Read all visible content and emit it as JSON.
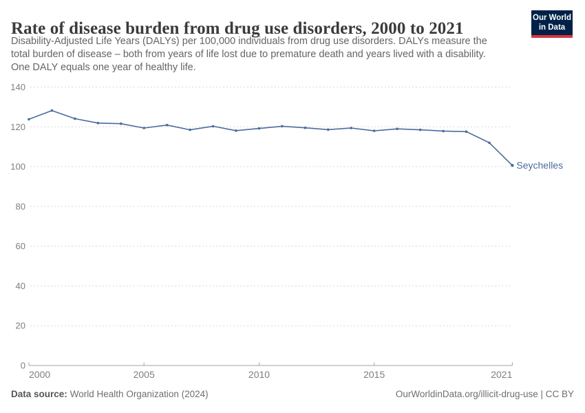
{
  "header": {
    "title": "Rate of disease burden from drug use disorders, 2000 to 2021",
    "subtitle_lines": [
      "Disability-Adjusted Life Years (DALYs) per 100,000 individuals from drug use disorders. DALYs measure the",
      "total burden of disease – both from years of life lost due to premature death and years lived with a disability.",
      "One DALY equals one year of healthy life."
    ]
  },
  "logo": {
    "line1": "Our World",
    "line2": "in Data",
    "bg_color": "#002147",
    "stripe_color": "#d7353c"
  },
  "chart_data": {
    "type": "line",
    "title": "Rate of disease burden from drug use disorders, 2000 to 2021",
    "xlabel": "",
    "ylabel": "DALYs per 100,000 individuals",
    "xlim": [
      2000,
      2021
    ],
    "ylim": [
      0,
      140
    ],
    "yticks": [
      0,
      20,
      40,
      60,
      80,
      100,
      120,
      140
    ],
    "xticks": [
      2000,
      2005,
      2010,
      2015,
      2021
    ],
    "grid": "horizontal-dashed",
    "legend_position": "end-of-line-label",
    "x": [
      2000,
      2001,
      2002,
      2003,
      2004,
      2005,
      2006,
      2007,
      2008,
      2009,
      2010,
      2011,
      2012,
      2013,
      2014,
      2015,
      2016,
      2017,
      2018,
      2019,
      2020,
      2021
    ],
    "series": [
      {
        "name": "Seychelles",
        "color": "#4C6A9C",
        "values": [
          123.8,
          128.2,
          124.1,
          121.9,
          121.6,
          119.4,
          120.9,
          118.5,
          120.3,
          118.1,
          119.2,
          120.3,
          119.5,
          118.6,
          119.4,
          118.0,
          119.0,
          118.5,
          117.9,
          117.6,
          112.0,
          100.6
        ]
      }
    ]
  },
  "footer": {
    "datasource_label": "Data source:",
    "datasource_value": "World Health Organization (2024)",
    "right_text": "OurWorldinData.org/illicit-drug-use | CC BY"
  },
  "colors": {
    "line_blue": "#4C6A9C",
    "grid_gray": "#d8d8d8",
    "axis_gray": "#a3a3a3",
    "tick_text": "#7e7e7e",
    "title_text": "#3b3b3b",
    "subtitle_text": "#646464"
  }
}
